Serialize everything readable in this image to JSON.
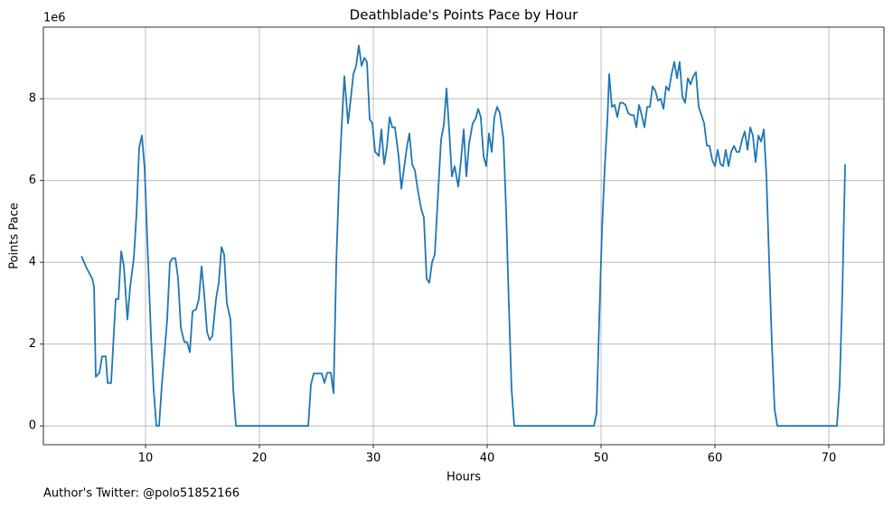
{
  "chart_data": {
    "type": "line",
    "title": "Deathblade's Points Pace by Hour",
    "x_label": "Hours",
    "y_label": "Points Pace",
    "y_offset_label": "1e6",
    "footer": "Author's Twitter: @polo51852166",
    "grid": true,
    "xlim": [
      1.03,
      74.84
    ],
    "ylim": [
      -0.46,
      9.75
    ],
    "xticks": [
      10,
      20,
      30,
      40,
      50,
      60,
      70
    ],
    "yticks": [
      0,
      2,
      4,
      6,
      8
    ],
    "x": [
      4.37,
      4.84,
      5.32,
      5.48,
      5.63,
      5.95,
      6.19,
      6.51,
      6.67,
      6.98,
      7.38,
      7.62,
      7.86,
      8.1,
      8.41,
      8.65,
      8.97,
      9.21,
      9.44,
      9.68,
      9.92,
      10.16,
      10.48,
      10.71,
      10.95,
      11.19,
      11.43,
      11.67,
      11.9,
      12.14,
      12.38,
      12.62,
      12.86,
      13.1,
      13.41,
      13.65,
      13.89,
      14.13,
      14.44,
      14.68,
      14.92,
      15.16,
      15.4,
      15.63,
      15.87,
      16.19,
      16.43,
      16.67,
      16.9,
      17.14,
      17.46,
      17.7,
      17.94,
      24.29,
      24.52,
      24.76,
      25.0,
      25.24,
      25.48,
      25.71,
      25.95,
      26.27,
      26.51,
      26.75,
      26.98,
      27.22,
      27.46,
      27.78,
      28.02,
      28.25,
      28.49,
      28.73,
      28.97,
      29.21,
      29.44,
      29.68,
      29.92,
      30.16,
      30.48,
      30.71,
      30.95,
      31.19,
      31.43,
      31.67,
      31.9,
      32.22,
      32.46,
      32.7,
      32.94,
      33.17,
      33.41,
      33.65,
      33.89,
      34.21,
      34.44,
      34.68,
      34.92,
      35.16,
      35.4,
      35.71,
      35.95,
      36.19,
      36.43,
      36.67,
      36.9,
      37.14,
      37.46,
      37.7,
      37.94,
      38.17,
      38.41,
      38.73,
      38.97,
      39.21,
      39.44,
      39.68,
      39.92,
      40.16,
      40.4,
      40.63,
      40.87,
      41.11,
      41.43,
      41.67,
      41.9,
      42.14,
      42.38,
      49.37,
      49.6,
      49.84,
      50.08,
      50.32,
      50.56,
      50.71,
      50.95,
      51.19,
      51.43,
      51.67,
      51.9,
      52.14,
      52.38,
      52.62,
      52.86,
      53.1,
      53.33,
      53.57,
      53.81,
      54.05,
      54.29,
      54.52,
      54.76,
      55.0,
      55.24,
      55.48,
      55.71,
      55.95,
      56.19,
      56.43,
      56.67,
      56.9,
      57.14,
      57.38,
      57.62,
      57.86,
      58.1,
      58.33,
      58.57,
      58.81,
      59.05,
      59.29,
      59.52,
      59.76,
      60.0,
      60.24,
      60.48,
      60.71,
      60.95,
      61.19,
      61.43,
      61.67,
      61.9,
      62.14,
      62.38,
      62.62,
      62.86,
      63.1,
      63.33,
      63.57,
      63.81,
      64.05,
      64.29,
      64.52,
      64.76,
      65.0,
      65.24,
      65.48,
      70.48,
      70.71,
      70.95,
      71.19,
      71.43
    ],
    "series": [
      {
        "name": "Points Pace",
        "color": "#1f77b4",
        "values": [
          4.15,
          3.85,
          3.6,
          3.4,
          1.2,
          1.3,
          1.7,
          1.7,
          1.05,
          1.05,
          3.1,
          3.1,
          4.27,
          3.9,
          2.6,
          3.4,
          4.1,
          5.2,
          6.8,
          7.1,
          6.3,
          4.5,
          2.2,
          0.9,
          0,
          0,
          1.0,
          1.8,
          2.6,
          4.0,
          4.1,
          4.1,
          3.6,
          2.4,
          2.05,
          2.05,
          1.8,
          2.8,
          2.85,
          3.1,
          3.9,
          3.2,
          2.3,
          2.1,
          2.2,
          3.1,
          3.5,
          4.37,
          4.2,
          3.0,
          2.6,
          0.9,
          0,
          0,
          1.0,
          1.28,
          1.28,
          1.28,
          1.28,
          1.05,
          1.3,
          1.3,
          0.8,
          4.0,
          5.9,
          7.3,
          8.55,
          7.4,
          8.0,
          8.6,
          8.8,
          9.3,
          8.8,
          9.0,
          8.9,
          7.5,
          7.4,
          6.7,
          6.6,
          7.25,
          6.4,
          6.8,
          7.55,
          7.3,
          7.3,
          6.6,
          5.8,
          6.3,
          6.8,
          7.15,
          6.4,
          6.25,
          5.8,
          5.3,
          5.1,
          3.6,
          3.5,
          4.0,
          4.2,
          5.8,
          7.0,
          7.35,
          8.25,
          7.2,
          6.1,
          6.35,
          5.85,
          6.5,
          7.25,
          6.1,
          6.9,
          7.4,
          7.5,
          7.75,
          7.55,
          6.6,
          6.35,
          7.15,
          6.7,
          7.55,
          7.8,
          7.65,
          7.0,
          5.2,
          3.0,
          0.9,
          0,
          0,
          0.3,
          2.6,
          4.8,
          6.3,
          7.5,
          8.6,
          7.8,
          7.85,
          7.55,
          7.9,
          7.9,
          7.85,
          7.65,
          7.6,
          7.6,
          7.3,
          7.85,
          7.6,
          7.3,
          7.8,
          7.8,
          8.3,
          8.2,
          7.95,
          8.0,
          7.75,
          8.3,
          8.2,
          8.6,
          8.9,
          8.5,
          8.9,
          8.05,
          7.9,
          8.5,
          8.35,
          8.55,
          8.65,
          7.8,
          7.6,
          7.4,
          6.85,
          6.85,
          6.5,
          6.35,
          6.75,
          6.4,
          6.35,
          6.75,
          6.35,
          6.7,
          6.85,
          6.7,
          6.7,
          7.0,
          7.2,
          6.75,
          7.3,
          7.1,
          6.45,
          7.1,
          6.95,
          7.25,
          6.1,
          4.0,
          2.0,
          0.4,
          0,
          0,
          0,
          1.0,
          3.3,
          6.4
        ]
      }
    ]
  }
}
